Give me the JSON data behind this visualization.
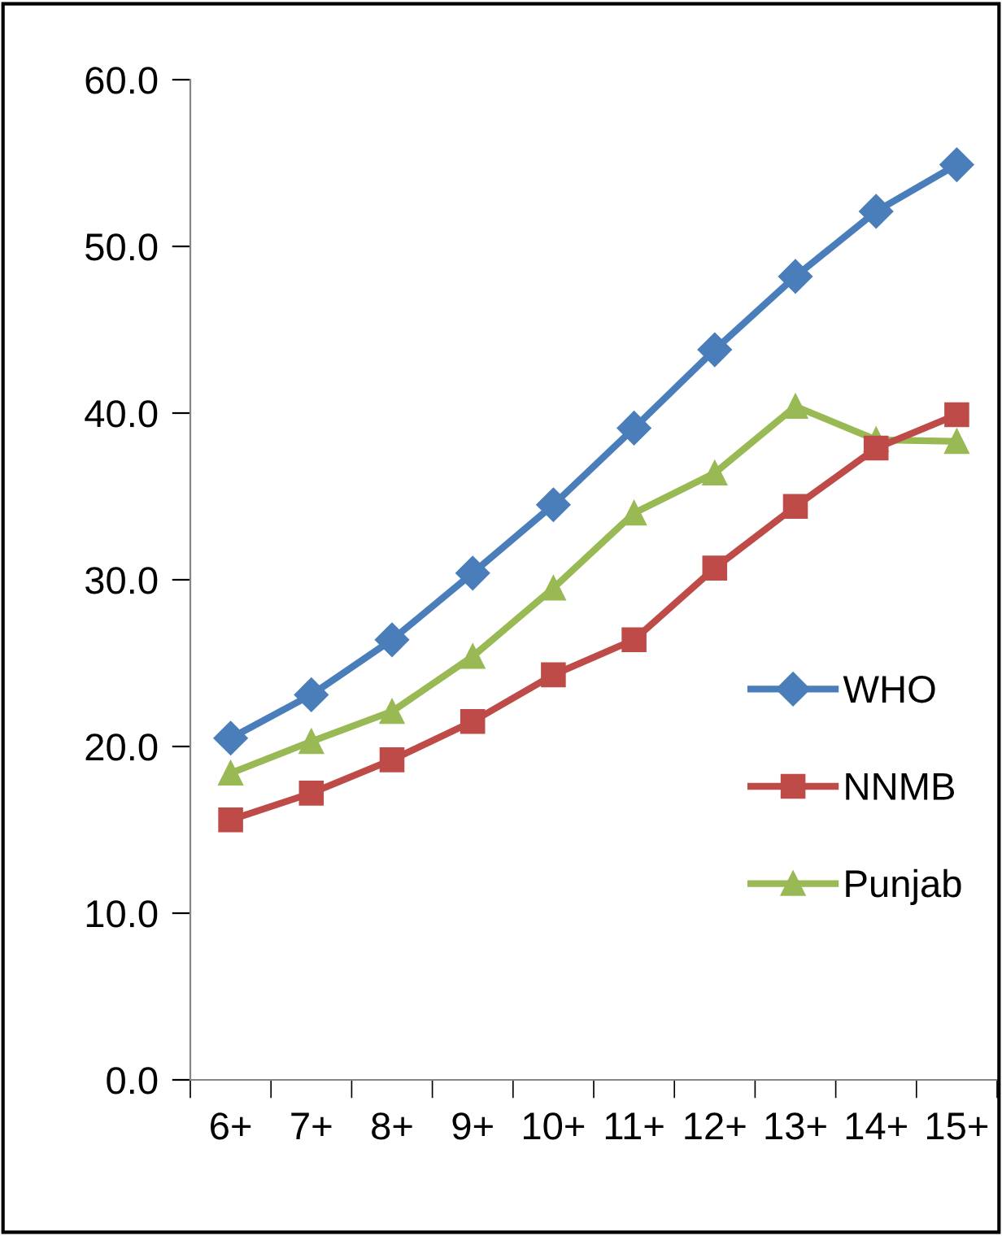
{
  "chart_data": {
    "type": "line",
    "categories": [
      "6+",
      "7+",
      "8+",
      "9+",
      "10+",
      "11+",
      "12+",
      "13+",
      "14+",
      "15+"
    ],
    "series": [
      {
        "name": "WHO",
        "color": "#4a7ebb",
        "marker": "diamond",
        "values": [
          20.5,
          23.1,
          26.4,
          30.4,
          34.5,
          39.1,
          43.8,
          48.2,
          52.1,
          54.9
        ]
      },
      {
        "name": "NNMB",
        "color": "#be4b48",
        "marker": "square",
        "values": [
          15.6,
          17.2,
          19.2,
          21.5,
          24.3,
          26.4,
          30.7,
          34.4,
          37.9,
          39.9
        ]
      },
      {
        "name": "Punjab",
        "color": "#98b954",
        "marker": "triangle",
        "values": [
          18.4,
          20.3,
          22.1,
          25.4,
          29.5,
          34.0,
          36.4,
          40.4,
          38.4,
          38.3
        ]
      }
    ],
    "ylim": [
      0,
      60
    ],
    "yticks": [
      {
        "value": 0,
        "label": "0.0"
      },
      {
        "value": 10,
        "label": "10.0"
      },
      {
        "value": 20,
        "label": "20.0"
      },
      {
        "value": 30,
        "label": "30.0"
      },
      {
        "value": 40,
        "label": "40.0"
      },
      {
        "value": 50,
        "label": "50.0"
      },
      {
        "value": 60,
        "label": "60.0"
      }
    ],
    "grid": false,
    "legend": "right",
    "line_style": "solid"
  }
}
